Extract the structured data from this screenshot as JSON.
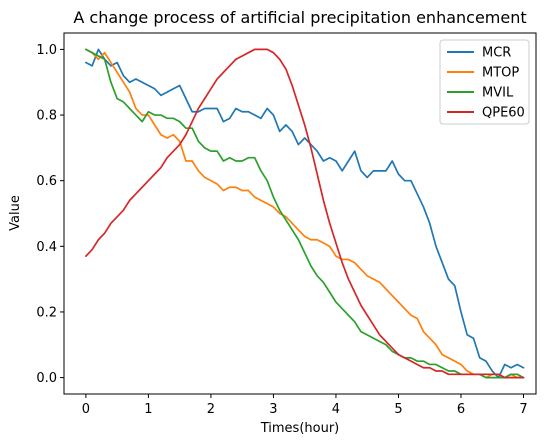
{
  "chart_data": {
    "type": "line",
    "title": "A change process of artificial precipitation enhancement",
    "xlabel": "Times(hour)",
    "ylabel": "Value",
    "xlim": [
      -0.35,
      7.2
    ],
    "ylim": [
      -0.05,
      1.05
    ],
    "xticks": [
      0,
      1,
      2,
      3,
      4,
      5,
      6,
      7
    ],
    "yticks": [
      0.0,
      0.2,
      0.4,
      0.6,
      0.8,
      1.0
    ],
    "xtick_labels": [
      "0",
      "1",
      "2",
      "3",
      "4",
      "5",
      "6",
      "7"
    ],
    "ytick_labels": [
      "0.0",
      "0.2",
      "0.4",
      "0.6",
      "0.8",
      "1.0"
    ],
    "grid": false,
    "legend_position": "top-right",
    "series": [
      {
        "name": "MCR",
        "color": "#1f77b4",
        "x": [
          0,
          0.1,
          0.2,
          0.3,
          0.4,
          0.5,
          0.6,
          0.7,
          0.8,
          0.9,
          1.0,
          1.1,
          1.2,
          1.3,
          1.4,
          1.5,
          1.6,
          1.7,
          1.8,
          1.9,
          2.0,
          2.1,
          2.2,
          2.3,
          2.4,
          2.5,
          2.6,
          2.7,
          2.8,
          2.9,
          3.0,
          3.1,
          3.2,
          3.3,
          3.4,
          3.5,
          3.6,
          3.7,
          3.8,
          3.9,
          4.0,
          4.1,
          4.2,
          4.3,
          4.4,
          4.5,
          4.6,
          4.7,
          4.8,
          4.9,
          5.0,
          5.1,
          5.2,
          5.3,
          5.4,
          5.5,
          5.6,
          5.7,
          5.8,
          5.9,
          6.0,
          6.1,
          6.2,
          6.3,
          6.4,
          6.5,
          6.6,
          6.7,
          6.8,
          6.9,
          7.0
        ],
        "y": [
          0.96,
          0.95,
          1.0,
          0.97,
          0.95,
          0.96,
          0.92,
          0.9,
          0.91,
          0.9,
          0.89,
          0.88,
          0.86,
          0.87,
          0.88,
          0.89,
          0.85,
          0.81,
          0.81,
          0.82,
          0.82,
          0.82,
          0.78,
          0.79,
          0.82,
          0.81,
          0.81,
          0.8,
          0.79,
          0.82,
          0.8,
          0.75,
          0.77,
          0.75,
          0.71,
          0.73,
          0.71,
          0.69,
          0.66,
          0.67,
          0.66,
          0.63,
          0.66,
          0.69,
          0.63,
          0.61,
          0.63,
          0.63,
          0.63,
          0.66,
          0.62,
          0.6,
          0.6,
          0.56,
          0.52,
          0.47,
          0.4,
          0.35,
          0.3,
          0.28,
          0.2,
          0.13,
          0.12,
          0.06,
          0.05,
          0.02,
          0.0,
          0.04,
          0.03,
          0.04,
          0.03
        ]
      },
      {
        "name": "MTOP",
        "color": "#ff7f0e",
        "x": [
          0,
          0.1,
          0.2,
          0.3,
          0.4,
          0.5,
          0.6,
          0.7,
          0.8,
          0.9,
          1.0,
          1.1,
          1.2,
          1.3,
          1.4,
          1.5,
          1.6,
          1.7,
          1.8,
          1.9,
          2.0,
          2.1,
          2.2,
          2.3,
          2.4,
          2.5,
          2.6,
          2.7,
          2.8,
          2.9,
          3.0,
          3.1,
          3.2,
          3.3,
          3.4,
          3.5,
          3.6,
          3.7,
          3.8,
          3.9,
          4.0,
          4.1,
          4.2,
          4.3,
          4.4,
          4.5,
          4.6,
          4.7,
          4.8,
          4.9,
          5.0,
          5.1,
          5.2,
          5.3,
          5.4,
          5.5,
          5.6,
          5.7,
          5.8,
          5.9,
          6.0,
          6.1,
          6.2,
          6.3,
          6.4,
          6.5,
          6.6,
          6.7,
          6.8,
          6.9,
          7.0
        ],
        "y": [
          1.0,
          0.99,
          0.97,
          0.99,
          0.96,
          0.93,
          0.9,
          0.87,
          0.82,
          0.8,
          0.8,
          0.77,
          0.74,
          0.73,
          0.74,
          0.72,
          0.66,
          0.66,
          0.63,
          0.61,
          0.6,
          0.59,
          0.57,
          0.58,
          0.58,
          0.57,
          0.57,
          0.55,
          0.54,
          0.53,
          0.52,
          0.5,
          0.49,
          0.47,
          0.45,
          0.43,
          0.42,
          0.42,
          0.41,
          0.4,
          0.37,
          0.36,
          0.36,
          0.35,
          0.33,
          0.31,
          0.3,
          0.29,
          0.27,
          0.25,
          0.23,
          0.21,
          0.19,
          0.18,
          0.14,
          0.12,
          0.1,
          0.07,
          0.06,
          0.05,
          0.04,
          0.02,
          0.01,
          0.01,
          0.0,
          0.01,
          0.01,
          0.0,
          0.01,
          0.0,
          0.0
        ]
      },
      {
        "name": "MVIL",
        "color": "#2ca02c",
        "x": [
          0,
          0.1,
          0.2,
          0.3,
          0.4,
          0.5,
          0.6,
          0.7,
          0.8,
          0.9,
          1.0,
          1.1,
          1.2,
          1.3,
          1.4,
          1.5,
          1.6,
          1.7,
          1.8,
          1.9,
          2.0,
          2.1,
          2.2,
          2.3,
          2.4,
          2.5,
          2.6,
          2.7,
          2.8,
          2.9,
          3.0,
          3.1,
          3.2,
          3.3,
          3.4,
          3.5,
          3.6,
          3.7,
          3.8,
          3.9,
          4.0,
          4.1,
          4.2,
          4.3,
          4.4,
          4.5,
          4.6,
          4.7,
          4.8,
          4.9,
          5.0,
          5.1,
          5.2,
          5.3,
          5.4,
          5.5,
          5.6,
          5.7,
          5.8,
          5.9,
          6.0,
          6.1,
          6.2,
          6.3,
          6.4,
          6.5,
          6.6,
          6.7,
          6.8,
          6.9,
          7.0
        ],
        "y": [
          1.0,
          0.99,
          0.98,
          0.97,
          0.9,
          0.85,
          0.84,
          0.82,
          0.8,
          0.78,
          0.81,
          0.8,
          0.8,
          0.79,
          0.79,
          0.78,
          0.76,
          0.76,
          0.72,
          0.7,
          0.69,
          0.69,
          0.66,
          0.67,
          0.66,
          0.66,
          0.67,
          0.67,
          0.63,
          0.6,
          0.55,
          0.51,
          0.48,
          0.45,
          0.42,
          0.38,
          0.34,
          0.31,
          0.29,
          0.26,
          0.23,
          0.21,
          0.19,
          0.17,
          0.14,
          0.13,
          0.12,
          0.11,
          0.1,
          0.08,
          0.07,
          0.06,
          0.06,
          0.05,
          0.05,
          0.04,
          0.04,
          0.03,
          0.02,
          0.02,
          0.01,
          0.01,
          0.01,
          0.01,
          0.0,
          0.0,
          0.0,
          0.0,
          0.01,
          0.01,
          0.0
        ]
      },
      {
        "name": "QPE60",
        "color": "#d62728",
        "x": [
          0,
          0.1,
          0.2,
          0.3,
          0.4,
          0.5,
          0.6,
          0.7,
          0.8,
          0.9,
          1.0,
          1.1,
          1.2,
          1.3,
          1.4,
          1.5,
          1.6,
          1.7,
          1.8,
          1.9,
          2.0,
          2.1,
          2.2,
          2.3,
          2.4,
          2.5,
          2.6,
          2.7,
          2.8,
          2.9,
          3.0,
          3.1,
          3.2,
          3.3,
          3.4,
          3.5,
          3.6,
          3.7,
          3.8,
          3.9,
          4.0,
          4.1,
          4.2,
          4.3,
          4.4,
          4.5,
          4.6,
          4.7,
          4.8,
          4.9,
          5.0,
          5.1,
          5.2,
          5.3,
          5.4,
          5.5,
          5.6,
          5.7,
          5.8,
          5.9,
          6.0,
          6.1,
          6.2,
          6.3,
          6.4,
          6.5,
          6.6,
          6.7,
          6.8,
          6.9,
          7.0
        ],
        "y": [
          0.37,
          0.39,
          0.42,
          0.44,
          0.47,
          0.49,
          0.51,
          0.54,
          0.56,
          0.58,
          0.6,
          0.62,
          0.64,
          0.67,
          0.69,
          0.71,
          0.74,
          0.78,
          0.82,
          0.85,
          0.88,
          0.91,
          0.93,
          0.95,
          0.97,
          0.98,
          0.99,
          1.0,
          1.0,
          1.0,
          0.99,
          0.97,
          0.94,
          0.89,
          0.83,
          0.77,
          0.7,
          0.62,
          0.54,
          0.47,
          0.41,
          0.35,
          0.3,
          0.26,
          0.22,
          0.19,
          0.16,
          0.13,
          0.11,
          0.09,
          0.07,
          0.06,
          0.05,
          0.04,
          0.03,
          0.03,
          0.02,
          0.02,
          0.01,
          0.01,
          0.01,
          0.01,
          0.01,
          0.01,
          0.01,
          0.01,
          0.01,
          0.0,
          0.0,
          0.0,
          0.0
        ]
      }
    ]
  }
}
